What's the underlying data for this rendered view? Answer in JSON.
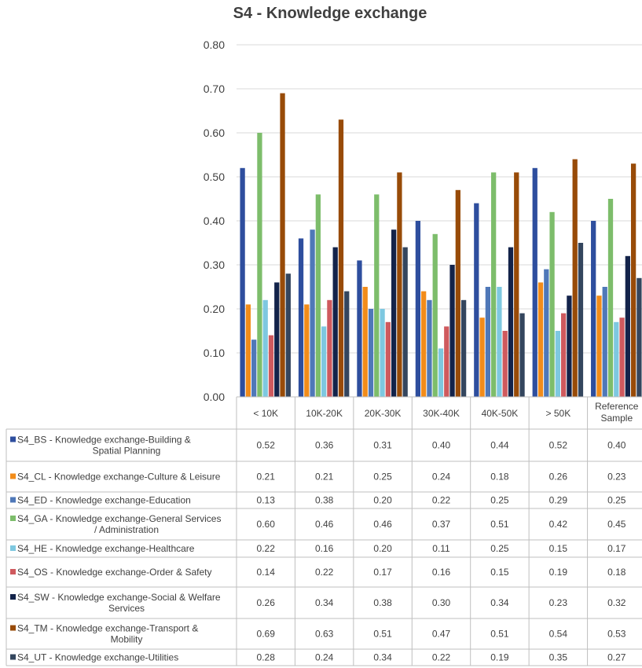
{
  "chart_data": {
    "type": "bar",
    "title": "S4 - Knowledge exchange",
    "xlabel": "",
    "ylabel": "",
    "ylim": [
      0,
      0.8
    ],
    "yticks": [
      "0.00",
      "0.10",
      "0.20",
      "0.30",
      "0.40",
      "0.50",
      "0.60",
      "0.70",
      "0.80"
    ],
    "grid": true,
    "legend": "data-table-left",
    "categories": [
      "< 10K",
      "10K-20K",
      "20K-30K",
      "30K-40K",
      "40K-50K",
      "> 50K",
      "Reference Sample"
    ],
    "series": [
      {
        "name": "S4_BS - Knowledge exchange-Building & Spatial Planning",
        "color": "#2e4e9e",
        "values": [
          0.52,
          0.36,
          0.31,
          0.4,
          0.44,
          0.52,
          0.4
        ],
        "labels": [
          "0.52",
          "0.36",
          "0.31",
          "0.40",
          "0.44",
          "0.52",
          "0.40"
        ]
      },
      {
        "name": "S4_CL - Knowledge exchange-Culture & Leisure",
        "color": "#f28c1a",
        "values": [
          0.21,
          0.21,
          0.25,
          0.24,
          0.18,
          0.26,
          0.23
        ],
        "labels": [
          "0.21",
          "0.21",
          "0.25",
          "0.24",
          "0.18",
          "0.26",
          "0.23"
        ]
      },
      {
        "name": "S4_ED - Knowledge exchange-Education",
        "color": "#4f78b8",
        "values": [
          0.13,
          0.38,
          0.2,
          0.22,
          0.25,
          0.29,
          0.25
        ],
        "labels": [
          "0.13",
          "0.38",
          "0.20",
          "0.22",
          "0.25",
          "0.29",
          "0.25"
        ]
      },
      {
        "name": "S4_GA - Knowledge exchange-General Services / Administration",
        "color": "#7dbd6b",
        "values": [
          0.6,
          0.46,
          0.46,
          0.37,
          0.51,
          0.42,
          0.45
        ],
        "labels": [
          "0.60",
          "0.46",
          "0.46",
          "0.37",
          "0.51",
          "0.42",
          "0.45"
        ]
      },
      {
        "name": "S4_HE - Knowledge exchange-Healthcare",
        "color": "#7ec8e0",
        "values": [
          0.22,
          0.16,
          0.2,
          0.11,
          0.25,
          0.15,
          0.17
        ],
        "labels": [
          "0.22",
          "0.16",
          "0.20",
          "0.11",
          "0.25",
          "0.15",
          "0.17"
        ]
      },
      {
        "name": "S4_OS - Knowledge exchange-Order & Safety",
        "color": "#cf5a5e",
        "values": [
          0.14,
          0.22,
          0.17,
          0.16,
          0.15,
          0.19,
          0.18
        ],
        "labels": [
          "0.14",
          "0.22",
          "0.17",
          "0.16",
          "0.15",
          "0.19",
          "0.18"
        ]
      },
      {
        "name": "S4_SW - Knowledge exchange-Social & Welfare Services",
        "color": "#13234a",
        "values": [
          0.26,
          0.34,
          0.38,
          0.3,
          0.34,
          0.23,
          0.32
        ],
        "labels": [
          "0.26",
          "0.34",
          "0.38",
          "0.30",
          "0.34",
          "0.23",
          "0.32"
        ]
      },
      {
        "name": "S4_TM - Knowledge exchange-Transport & Mobility",
        "color": "#984b08",
        "values": [
          0.69,
          0.63,
          0.51,
          0.47,
          0.51,
          0.54,
          0.53
        ],
        "labels": [
          "0.69",
          "0.63",
          "0.51",
          "0.47",
          "0.51",
          "0.54",
          "0.53"
        ]
      },
      {
        "name": "S4_UT - Knowledge exchange-Utilities",
        "color": "#34465e",
        "values": [
          0.28,
          0.24,
          0.34,
          0.22,
          0.19,
          0.35,
          0.27
        ],
        "labels": [
          "0.28",
          "0.24",
          "0.34",
          "0.22",
          "0.19",
          "0.35",
          "0.27"
        ]
      }
    ]
  }
}
